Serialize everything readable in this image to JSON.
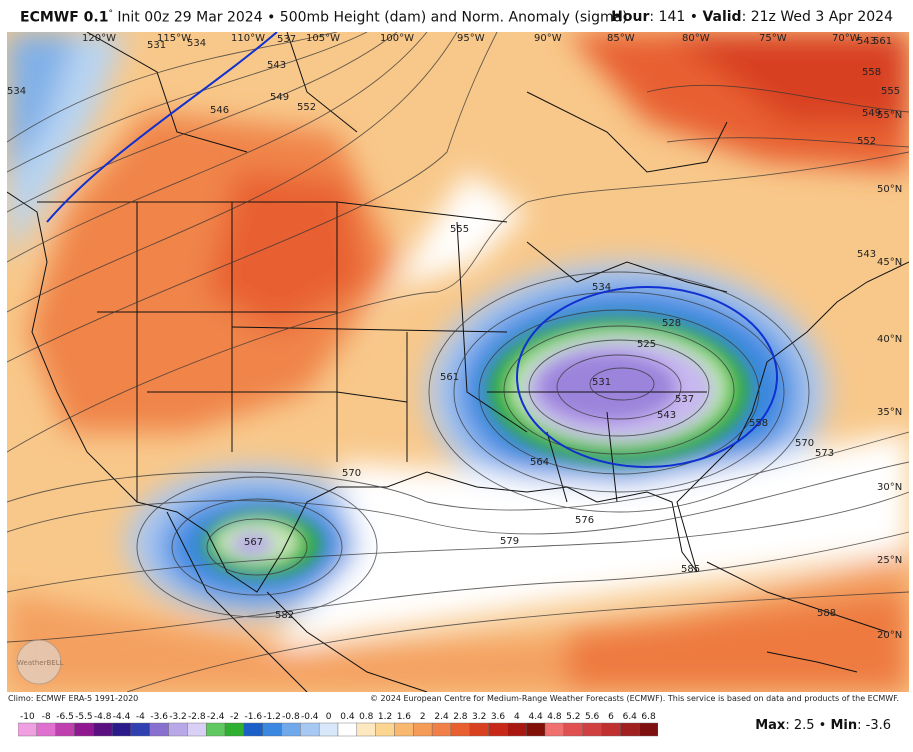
{
  "header": {
    "model": "ECMWF 0.1",
    "degree": "°",
    "init": "Init 00z 29 Mar 2024",
    "bullet": "•",
    "product": "500mb Height (dam) and Norm. Anomaly (sigma)",
    "hour_label": "Hour",
    "hour_value": ": 141",
    "valid_label": "Valid",
    "valid_value": ": 21z Wed 3 Apr 2024"
  },
  "map": {
    "longitude_labels": [
      "120°W",
      "115°W",
      "110°W",
      "105°W",
      "100°W",
      "95°W",
      "90°W",
      "85°W",
      "80°W",
      "75°W",
      "70°W"
    ],
    "latitude_labels": [
      "55°N",
      "50°N",
      "45°N",
      "40°N",
      "35°N",
      "30°N",
      "25°N",
      "20°N"
    ],
    "height_labels": [
      "531",
      "534",
      "534",
      "537",
      "543",
      "546",
      "549",
      "552",
      "555",
      "561",
      "564",
      "570",
      "576",
      "579",
      "582",
      "585",
      "588",
      "525",
      "528",
      "531",
      "537",
      "543",
      "558",
      "570",
      "573",
      "567",
      "552",
      "549",
      "555",
      "558",
      "561",
      "543",
      "567"
    ],
    "watermark": "WeatherBELL"
  },
  "footer": {
    "climo": "Climo: ECMWF ERA-5 1991-2020",
    "copyright": "© 2024 European Centre for Medium-Range Weather Forecasts (ECMWF). This service is based on data and products of the ECMWF.",
    "max_label": "Max",
    "max_value": ": 2.5 • ",
    "min_label": "Min",
    "min_value": ": -3.6"
  },
  "colorbar": {
    "ticks": [
      "-10",
      "-8",
      "-6.5",
      "-5.5",
      "-4.8",
      "-4.4",
      "-4",
      "-3.6",
      "-3.2",
      "-2.8",
      "-2.4",
      "-2",
      "-1.6",
      "-1.2",
      "-0.8",
      "-0.4",
      "0",
      "0.4",
      "0.8",
      "1.2",
      "1.6",
      "2",
      "2.4",
      "2.8",
      "3.2",
      "3.6",
      "4",
      "4.4",
      "4.8",
      "5.2",
      "5.6",
      "6",
      "6.4",
      "6.8"
    ],
    "colors": [
      "#f0a0e0",
      "#e070d0",
      "#c040b0",
      "#901890",
      "#5a1080",
      "#2a1a8a",
      "#3040b0",
      "#8870d0",
      "#b8a8e8",
      "#d8d0f5",
      "#60c860",
      "#30b030",
      "#1a60c8",
      "#3a88e0",
      "#70a8ec",
      "#a8c8f4",
      "#d8e8fa",
      "#ffffff",
      "#fde8c0",
      "#fcd690",
      "#f8b870",
      "#f49c58",
      "#f08048",
      "#e86030",
      "#d84020",
      "#c82818",
      "#a81810",
      "#801008",
      "#f07070",
      "#e05050",
      "#d04040",
      "#c03030",
      "#a02020",
      "#801010"
    ]
  }
}
